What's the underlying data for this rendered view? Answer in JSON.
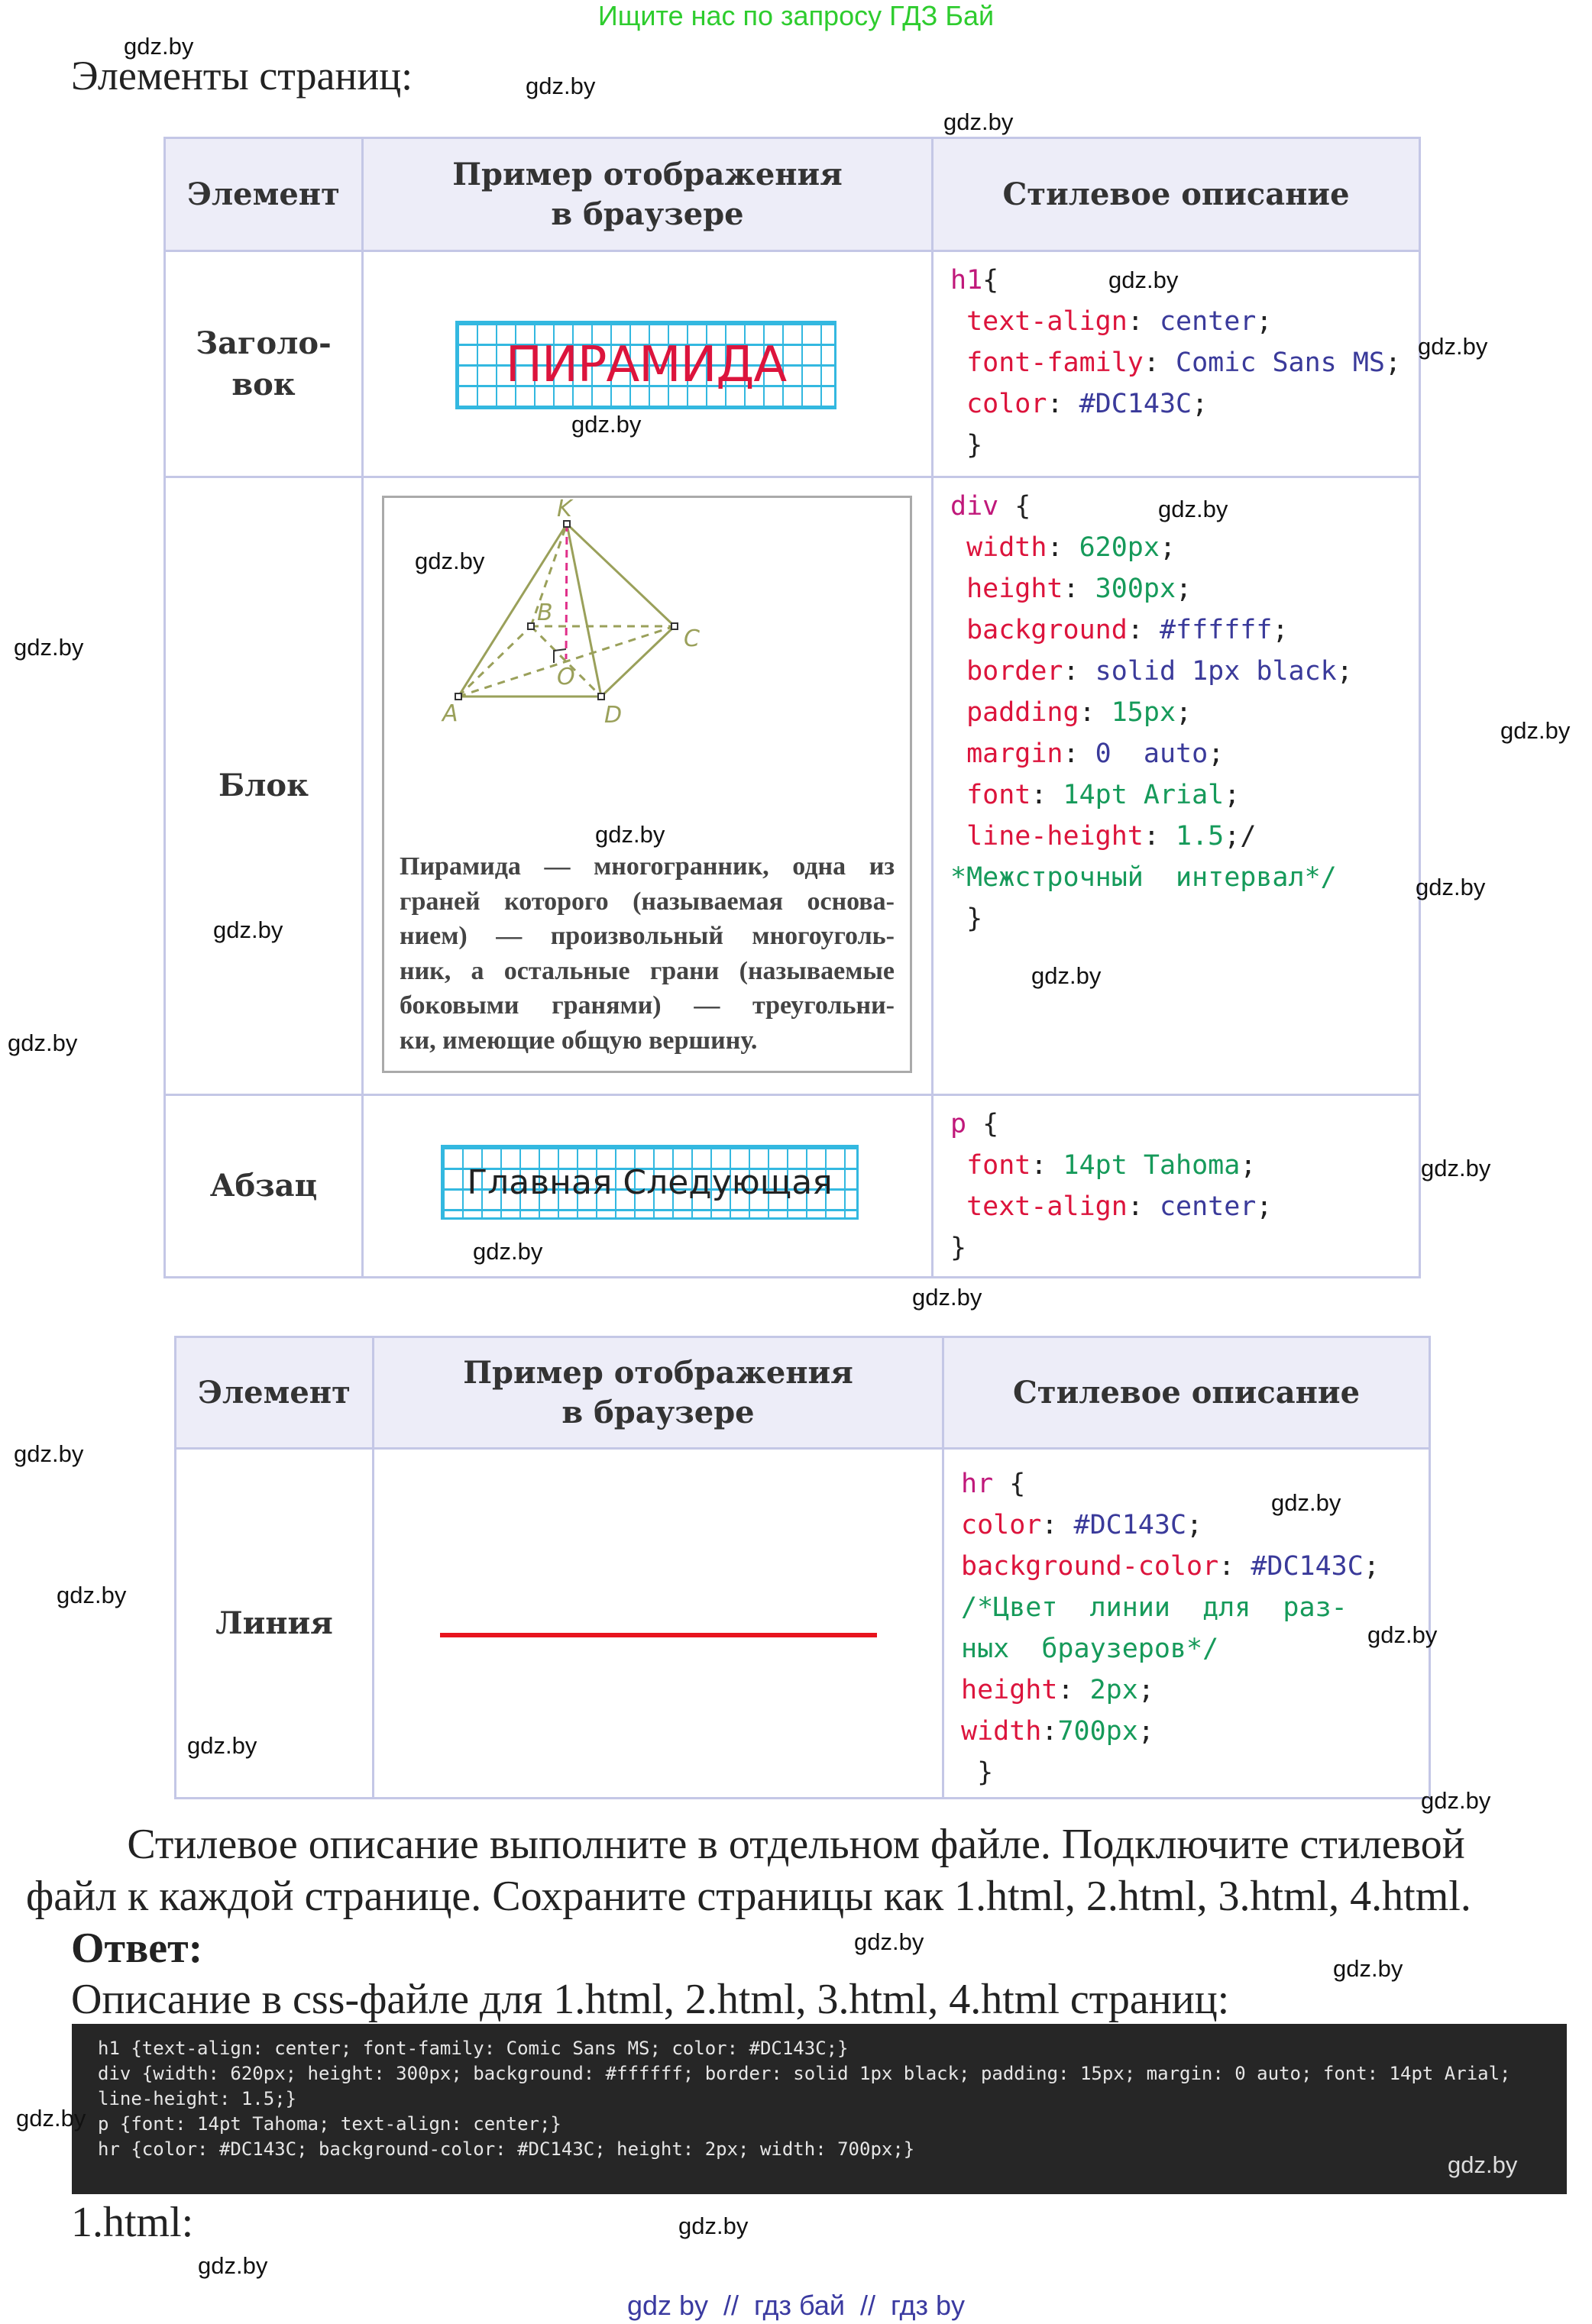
{
  "banner": "Ищите нас по запросу ГДЗ Бай",
  "section_title": "Элементы страниц:",
  "table1": {
    "headers": [
      "Элемент",
      "Пример отображения\nв браузере",
      "Стилевое описание"
    ],
    "rows": [
      {
        "element": "Заголо-\nвок",
        "example": "ПИРАМИДА",
        "code": [
          [
            {
              "t": "h1",
              "c": "sel"
            },
            {
              "t": "{",
              "c": "punc"
            }
          ],
          [
            {
              "t": " text-align",
              "c": "prop"
            },
            {
              "t": ": ",
              "c": "punc"
            },
            {
              "t": "center",
              "c": "val"
            },
            {
              "t": ";",
              "c": "punc"
            }
          ],
          [
            {
              "t": " font-family",
              "c": "prop"
            },
            {
              "t": ": ",
              "c": "punc"
            },
            {
              "t": "Comic Sans MS",
              "c": "val"
            },
            {
              "t": ";",
              "c": "punc"
            }
          ],
          [
            {
              "t": " color",
              "c": "prop"
            },
            {
              "t": ": ",
              "c": "punc"
            },
            {
              "t": "#DC143C",
              "c": "val"
            },
            {
              "t": ";",
              "c": "punc"
            }
          ],
          [
            {
              "t": " }",
              "c": "punc"
            }
          ]
        ]
      },
      {
        "element": "Блок",
        "example": {
          "labels": {
            "K": "K",
            "B": "B",
            "C": "C",
            "A": "A",
            "D": "D",
            "O": "O"
          },
          "text": [
            "Пирамида — многогранник, одна из",
            "граней которого (называемая основа-",
            "нием) — произвольный многоуголь-",
            "ник, а остальные грани (называемые",
            "боковыми гранями) — треугольни-",
            "ки, имеющие общую вершину."
          ]
        },
        "code": [
          [
            {
              "t": "div",
              "c": "sel"
            },
            {
              "t": " {",
              "c": "punc"
            }
          ],
          [
            {
              "t": " width",
              "c": "prop"
            },
            {
              "t": ": ",
              "c": "punc"
            },
            {
              "t": "620px",
              "c": "num"
            },
            {
              "t": ";",
              "c": "punc"
            }
          ],
          [
            {
              "t": " height",
              "c": "prop"
            },
            {
              "t": ": ",
              "c": "punc"
            },
            {
              "t": "300px",
              "c": "num"
            },
            {
              "t": ";",
              "c": "punc"
            }
          ],
          [
            {
              "t": " background",
              "c": "prop"
            },
            {
              "t": ": ",
              "c": "punc"
            },
            {
              "t": "#ffffff",
              "c": "val"
            },
            {
              "t": ";",
              "c": "punc"
            }
          ],
          [
            {
              "t": " border",
              "c": "prop"
            },
            {
              "t": ": ",
              "c": "punc"
            },
            {
              "t": "solid 1px black",
              "c": "val"
            },
            {
              "t": ";",
              "c": "punc"
            }
          ],
          [
            {
              "t": " padding",
              "c": "prop"
            },
            {
              "t": ": ",
              "c": "punc"
            },
            {
              "t": "15px",
              "c": "num"
            },
            {
              "t": ";",
              "c": "punc"
            }
          ],
          [
            {
              "t": " margin",
              "c": "prop"
            },
            {
              "t": ": ",
              "c": "punc"
            },
            {
              "t": "0  auto",
              "c": "val"
            },
            {
              "t": ";",
              "c": "punc"
            }
          ],
          [
            {
              "t": " font",
              "c": "prop"
            },
            {
              "t": ": ",
              "c": "punc"
            },
            {
              "t": "14pt Arial",
              "c": "num"
            },
            {
              "t": ";",
              "c": "punc"
            }
          ],
          [
            {
              "t": " line-height",
              "c": "prop"
            },
            {
              "t": ": ",
              "c": "punc"
            },
            {
              "t": "1.5",
              "c": "num"
            },
            {
              "t": ";/",
              "c": "punc"
            }
          ],
          [
            {
              "t": "*Межстрочный  интервал*/",
              "c": "cmt"
            }
          ],
          [
            {
              "t": " }",
              "c": "punc"
            }
          ]
        ]
      },
      {
        "element": "Абзац",
        "example": "Главная Следующая",
        "code": [
          [
            {
              "t": "p",
              "c": "sel"
            },
            {
              "t": " {",
              "c": "punc"
            }
          ],
          [
            {
              "t": " font",
              "c": "prop"
            },
            {
              "t": ": ",
              "c": "punc"
            },
            {
              "t": "14pt Tahoma",
              "c": "num"
            },
            {
              "t": ";",
              "c": "punc"
            }
          ],
          [
            {
              "t": " text-align",
              "c": "prop"
            },
            {
              "t": ": ",
              "c": "punc"
            },
            {
              "t": "center",
              "c": "val"
            },
            {
              "t": ";",
              "c": "punc"
            }
          ],
          [
            {
              "t": "}",
              "c": "punc"
            }
          ]
        ]
      }
    ]
  },
  "table2": {
    "headers": [
      "Элемент",
      "Пример отображения\nв браузере",
      "Стилевое описание"
    ],
    "rows": [
      {
        "element": "Линия",
        "line_color": "#DC143C",
        "code": [
          [
            {
              "t": "hr",
              "c": "sel"
            },
            {
              "t": " {",
              "c": "punc"
            }
          ],
          [
            {
              "t": "color",
              "c": "prop"
            },
            {
              "t": ": ",
              "c": "punc"
            },
            {
              "t": "#DC143C",
              "c": "val"
            },
            {
              "t": ";",
              "c": "punc"
            }
          ],
          [
            {
              "t": "background-color",
              "c": "prop"
            },
            {
              "t": ": ",
              "c": "punc"
            },
            {
              "t": "#DC143C",
              "c": "val"
            },
            {
              "t": ";",
              "c": "punc"
            }
          ],
          [
            {
              "t": "/*Цвет  линии  для  раз-",
              "c": "cmt"
            }
          ],
          [
            {
              "t": "ных  браузеров*/",
              "c": "cmt"
            }
          ],
          [
            {
              "t": "height",
              "c": "prop"
            },
            {
              "t": ": ",
              "c": "punc"
            },
            {
              "t": "2px",
              "c": "num"
            },
            {
              "t": ";",
              "c": "punc"
            }
          ],
          [
            {
              "t": "width",
              "c": "prop"
            },
            {
              "t": ":",
              "c": "punc"
            },
            {
              "t": "700px",
              "c": "num"
            },
            {
              "t": ";",
              "c": "punc"
            }
          ],
          [
            {
              "t": " }",
              "c": "punc"
            }
          ]
        ]
      }
    ]
  },
  "task_text": [
    "Стилевое описание выполните в отдельном файле. Подключите стилевой",
    "файл к каждой странице. Сохраните страницы как 1.html, 2.html, 3.html, 4.html."
  ],
  "answer_label": "Ответ:",
  "css_caption": "Описание в css-файле для 1.html, 2.html, 3.html, 4.html страниц:",
  "css_code": [
    "h1 {text-align: center; font-family: Comic Sans MS; color: #DC143C;}",
    "div {width: 620px; height: 300px; background: #ffffff; border: solid 1px black; padding: 15px; margin: 0 auto; font: 14pt Arial;",
    "line-height: 1.5;}",
    "p {font: 14pt Tahoma; text-align: center;}",
    "hr {color: #DC143C; background-color: #DC143C; height: 2px; width: 700px;}"
  ],
  "file_label": "1.html:",
  "footer": "gdz by  //  гдз бай  //  гдз by",
  "watermarks": [
    "gdz.by",
    "gdz.by",
    "gdz.by",
    "gdz.by",
    "gdz.by",
    "gdz.by",
    "gdz.by",
    "gdz.by",
    "gdz.by",
    "gdz.by",
    "gdz.by",
    "gdz.by",
    "gdz.by",
    "gdz.by",
    "gdz.by",
    "gdz.by",
    "gdz.by",
    "gdz.by",
    "gdz.by",
    "gdz.by",
    "gdz.by",
    "gdz.by",
    "gdz.by",
    "gdz.by",
    "gdz.by",
    "gdz.by",
    "gdz.by",
    "gdz.by",
    "gdz.by",
    "gdz.by"
  ],
  "colors": {
    "accent_red": "#DC143C",
    "banner_green": "#2ECC2E",
    "footer_blue": "#3A3AA0",
    "code_bg": "#262626"
  }
}
